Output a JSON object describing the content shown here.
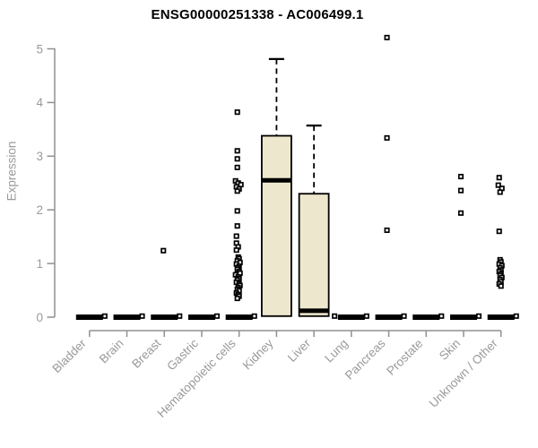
{
  "chart_data": {
    "type": "boxplot",
    "title": "ENSG00000251338 - AC006499.1",
    "ylabel": "Expression",
    "xlabel": "",
    "ylim": [
      0,
      5
    ],
    "yticks": [
      0,
      1,
      2,
      3,
      4,
      5
    ],
    "grid": false,
    "legend": "none",
    "categories": [
      "Bladder",
      "Brain",
      "Breast",
      "Gastric",
      "Hematopoietic cells",
      "Kidney",
      "Liver",
      "Lung",
      "Pancreas",
      "Prostate",
      "Skin",
      "Unknown / Other"
    ],
    "colors": {
      "box_fill": "#EDE7CD",
      "box_border": "#000000",
      "median": "#000000",
      "point": "#000000",
      "axis_line": "#909090",
      "tick_label": "#9A9A9A",
      "title": "#000000",
      "background": "#FFFFFF"
    },
    "boxes": [
      {
        "category": "Bladder",
        "whisker_low": 0,
        "q1": 0,
        "median": 0,
        "q3": 0,
        "whisker_high": 0,
        "collapsed": true,
        "points": [
          {
            "v": 0.02,
            "j": 17
          }
        ]
      },
      {
        "category": "Brain",
        "whisker_low": 0,
        "q1": 0,
        "median": 0,
        "q3": 0,
        "whisker_high": 0,
        "collapsed": true,
        "points": [
          {
            "v": 0.02,
            "j": 17
          }
        ]
      },
      {
        "category": "Breast",
        "whisker_low": 0,
        "q1": 0,
        "median": 0,
        "q3": 0,
        "whisker_high": 0,
        "collapsed": true,
        "points": [
          {
            "v": 1.24,
            "j": -1
          },
          {
            "v": 0.02,
            "j": 17
          }
        ]
      },
      {
        "category": "Gastric",
        "whisker_low": 0,
        "q1": 0,
        "median": 0,
        "q3": 0,
        "whisker_high": 0,
        "collapsed": true,
        "points": [
          {
            "v": 0.02,
            "j": 17
          }
        ]
      },
      {
        "category": "Hematopoietic cells",
        "whisker_low": 0,
        "q1": 0,
        "median": 0,
        "q3": 0,
        "whisker_high": 0,
        "collapsed": true,
        "points": [
          {
            "v": 3.82,
            "j": -2
          },
          {
            "v": 3.1,
            "j": -2
          },
          {
            "v": 2.95,
            "j": -2
          },
          {
            "v": 2.79,
            "j": -2
          },
          {
            "v": 2.54,
            "j": -4
          },
          {
            "v": 2.5,
            "j": -1
          },
          {
            "v": 2.47,
            "j": 2
          },
          {
            "v": 2.43,
            "j": -3
          },
          {
            "v": 2.39,
            "j": 0
          },
          {
            "v": 2.35,
            "j": -2
          },
          {
            "v": 1.98,
            "j": -2
          },
          {
            "v": 1.7,
            "j": -2
          },
          {
            "v": 1.51,
            "j": -3
          },
          {
            "v": 1.38,
            "j": -3
          },
          {
            "v": 1.31,
            "j": -1
          },
          {
            "v": 1.25,
            "j": -3
          },
          {
            "v": 1.12,
            "j": -1
          },
          {
            "v": 1.09,
            "j": 0
          },
          {
            "v": 1.05,
            "j": -2
          },
          {
            "v": 1.02,
            "j": 1
          },
          {
            "v": 0.99,
            "j": -3
          },
          {
            "v": 0.95,
            "j": 0
          },
          {
            "v": 0.92,
            "j": -1
          },
          {
            "v": 0.89,
            "j": -2
          },
          {
            "v": 0.85,
            "j": 0
          },
          {
            "v": 0.82,
            "j": 1
          },
          {
            "v": 0.79,
            "j": -4
          },
          {
            "v": 0.75,
            "j": -1
          },
          {
            "v": 0.72,
            "j": 0
          },
          {
            "v": 0.69,
            "j": -2
          },
          {
            "v": 0.65,
            "j": -3
          },
          {
            "v": 0.62,
            "j": 0
          },
          {
            "v": 0.59,
            "j": 1
          },
          {
            "v": 0.55,
            "j": -1
          },
          {
            "v": 0.52,
            "j": -2
          },
          {
            "v": 0.49,
            "j": 0
          },
          {
            "v": 0.45,
            "j": -3
          },
          {
            "v": 0.42,
            "j": -1
          },
          {
            "v": 0.39,
            "j": 0
          },
          {
            "v": 0.35,
            "j": -2
          },
          {
            "v": 0.02,
            "j": 17
          }
        ]
      },
      {
        "category": "Kidney",
        "whisker_low": 0,
        "q1": 0.02,
        "median": 2.55,
        "q3": 3.38,
        "whisker_high": 4.81,
        "collapsed": false,
        "points": []
      },
      {
        "category": "Liver",
        "whisker_low": 0,
        "q1": 0.02,
        "median": 0.12,
        "q3": 2.3,
        "whisker_high": 3.57,
        "collapsed": false,
        "points": [
          {
            "v": 0.02,
            "j": 23
          }
        ]
      },
      {
        "category": "Lung",
        "whisker_low": 0,
        "q1": 0,
        "median": 0,
        "q3": 0,
        "whisker_high": 0,
        "collapsed": true,
        "points": [
          {
            "v": 0.02,
            "j": 17
          }
        ]
      },
      {
        "category": "Pancreas",
        "whisker_low": 0,
        "q1": 0,
        "median": 0,
        "q3": 0,
        "whisker_high": 0,
        "collapsed": true,
        "points": [
          {
            "v": 5.21,
            "j": -2
          },
          {
            "v": 3.34,
            "j": -2
          },
          {
            "v": 1.62,
            "j": -2
          },
          {
            "v": 0.02,
            "j": 17
          }
        ]
      },
      {
        "category": "Prostate",
        "whisker_low": 0,
        "q1": 0,
        "median": 0,
        "q3": 0,
        "whisker_high": 0,
        "collapsed": true,
        "points": [
          {
            "v": 0.02,
            "j": 17
          }
        ]
      },
      {
        "category": "Skin",
        "whisker_low": 0,
        "q1": 0,
        "median": 0,
        "q3": 0,
        "whisker_high": 0,
        "collapsed": true,
        "points": [
          {
            "v": 2.62,
            "j": -3
          },
          {
            "v": 2.36,
            "j": -3
          },
          {
            "v": 1.94,
            "j": -3
          },
          {
            "v": 0.02,
            "j": 17
          }
        ]
      },
      {
        "category": "Unknown / Other",
        "whisker_low": 0,
        "q1": 0,
        "median": 0,
        "q3": 0,
        "whisker_high": 0,
        "collapsed": true,
        "points": [
          {
            "v": 2.6,
            "j": -2
          },
          {
            "v": 2.46,
            "j": -3
          },
          {
            "v": 2.4,
            "j": 1
          },
          {
            "v": 2.33,
            "j": -1
          },
          {
            "v": 1.6,
            "j": -2
          },
          {
            "v": 1.07,
            "j": -1
          },
          {
            "v": 1.03,
            "j": 0
          },
          {
            "v": 0.99,
            "j": -2
          },
          {
            "v": 0.96,
            "j": 1
          },
          {
            "v": 0.92,
            "j": -1
          },
          {
            "v": 0.88,
            "j": 0
          },
          {
            "v": 0.85,
            "j": -2
          },
          {
            "v": 0.81,
            "j": 0
          },
          {
            "v": 0.78,
            "j": -1
          },
          {
            "v": 0.74,
            "j": 1
          },
          {
            "v": 0.7,
            "j": -1
          },
          {
            "v": 0.66,
            "j": 0
          },
          {
            "v": 0.62,
            "j": -2
          },
          {
            "v": 0.58,
            "j": 0
          },
          {
            "v": 0.02,
            "j": 17
          }
        ]
      }
    ]
  }
}
